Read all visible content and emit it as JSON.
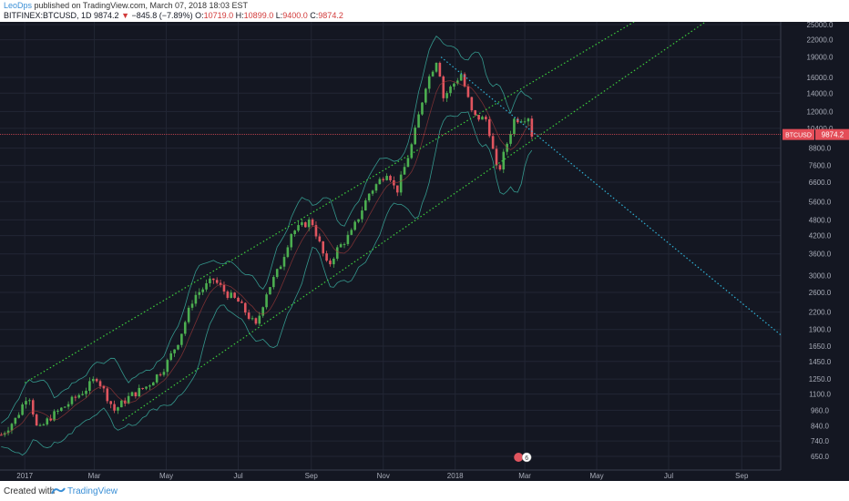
{
  "header": {
    "author": "LeoDps",
    "published": "published on TradingView.com, March 07, 2018 18:03 EST",
    "symbol": "BITFINEX:BTCUSD, 1D",
    "last": "9874.2",
    "change_arrow": "▼",
    "change": "−845.8 (−7.89%)",
    "o_label": "O:",
    "o_val": "10719.0",
    "h_label": "H:",
    "h_val": "10899.0",
    "l_label": "L:",
    "l_val": "9400.0",
    "c_label": "C:",
    "c_val": "9874.2"
  },
  "footer": {
    "created": "Created with",
    "brand": "TradingView"
  },
  "colors": {
    "background": "#141722",
    "up": "#4caf50",
    "down": "#e0555f",
    "channel": "#3dcc3d",
    "downtrend": "#2fb2d6",
    "bands": "#3cb8a8",
    "price_line": "#e44d58"
  },
  "chart_data": {
    "type": "candlestick",
    "symbol": "BTCUSD",
    "price_label": "BTCUSD",
    "last_price": 9874.2,
    "last_price_text": "9874.2",
    "y_scale": "log",
    "y_ticks": [
      650,
      740,
      840,
      960,
      1100,
      1250,
      1450,
      1650,
      1900,
      2200,
      2600,
      3000,
      3600,
      4200,
      4800,
      5600,
      6600,
      7600,
      8800,
      10400,
      12000,
      14000,
      16000,
      19000,
      22000,
      25000
    ],
    "y_tick_labels": [
      "650.0",
      "740.0",
      "840.0",
      "960.0",
      "1100.0",
      "1250.0",
      "1450.0",
      "1650.0",
      "1900.0",
      "2200.0",
      "2600.0",
      "3000.0",
      "3600.0",
      "4200.0",
      "4800.0",
      "5600.0",
      "6600.0",
      "7600.0",
      "8800.0",
      "10400.0",
      "12000.0",
      "14000.0",
      "16000.0",
      "19000.0",
      "22000.0",
      "25000.0"
    ],
    "x_labels": [
      {
        "date": "2017-01-01",
        "text": "2017"
      },
      {
        "date": "2017-03-01",
        "text": "Mar"
      },
      {
        "date": "2017-05-01",
        "text": "May"
      },
      {
        "date": "2017-07-01",
        "text": "Jul"
      },
      {
        "date": "2017-09-01",
        "text": "Sep"
      },
      {
        "date": "2017-11-01",
        "text": "Nov"
      },
      {
        "date": "2018-01-01",
        "text": "2018"
      },
      {
        "date": "2018-03-01",
        "text": "Mar"
      },
      {
        "date": "2018-05-01",
        "text": "May"
      },
      {
        "date": "2018-07-01",
        "text": "Jul"
      },
      {
        "date": "2018-09-01",
        "text": "Sep"
      }
    ],
    "price_path": [
      [
        "2016-12-12",
        780
      ],
      [
        "2016-12-25",
        900
      ],
      [
        "2017-01-04",
        1120
      ],
      [
        "2017-01-12",
        800
      ],
      [
        "2017-01-22",
        900
      ],
      [
        "2017-02-05",
        1000
      ],
      [
        "2017-02-22",
        1150
      ],
      [
        "2017-03-03",
        1270
      ],
      [
        "2017-03-18",
        960
      ],
      [
        "2017-03-31",
        1080
      ],
      [
        "2017-04-15",
        1180
      ],
      [
        "2017-04-30",
        1390
      ],
      [
        "2017-05-12",
        1750
      ],
      [
        "2017-05-24",
        2500
      ],
      [
        "2017-06-10",
        2900
      ],
      [
        "2017-06-20",
        2600
      ],
      [
        "2017-07-01",
        2400
      ],
      [
        "2017-07-16",
        1950
      ],
      [
        "2017-07-25",
        2600
      ],
      [
        "2017-08-05",
        3200
      ],
      [
        "2017-08-15",
        4300
      ],
      [
        "2017-09-01",
        4800
      ],
      [
        "2017-09-15",
        3200
      ],
      [
        "2017-09-22",
        3700
      ],
      [
        "2017-10-05",
        4300
      ],
      [
        "2017-10-20",
        6000
      ],
      [
        "2017-11-05",
        7300
      ],
      [
        "2017-11-12",
        6000
      ],
      [
        "2017-11-26",
        9300
      ],
      [
        "2017-12-07",
        15000
      ],
      [
        "2017-12-17",
        19000
      ],
      [
        "2017-12-22",
        13500
      ],
      [
        "2018-01-06",
        16500
      ],
      [
        "2018-01-16",
        11500
      ],
      [
        "2018-01-28",
        11200
      ],
      [
        "2018-02-06",
        7000
      ],
      [
        "2018-02-15",
        9500
      ],
      [
        "2018-02-20",
        11200
      ],
      [
        "2018-03-04",
        11500
      ],
      [
        "2018-03-07",
        9874
      ]
    ],
    "ohlc_last": {
      "open": 10719.0,
      "high": 10899.0,
      "low": 9400.0,
      "close": 9874.2
    },
    "trendlines": [
      {
        "name": "channel-upper",
        "type": "dotted",
        "points": [
          [
            "2017-01-01",
            1210
          ],
          [
            "2018-03-01",
            14800
          ]
        ]
      },
      {
        "name": "channel-lower",
        "type": "dotted",
        "points": [
          [
            "2017-03-25",
            880
          ],
          [
            "2018-03-01",
            9000
          ]
        ]
      },
      {
        "name": "downtrend",
        "type": "dotted",
        "points": [
          [
            "2017-12-20",
            19000
          ],
          [
            "2018-03-01",
            10650
          ]
        ]
      }
    ],
    "event_badge": "6"
  }
}
